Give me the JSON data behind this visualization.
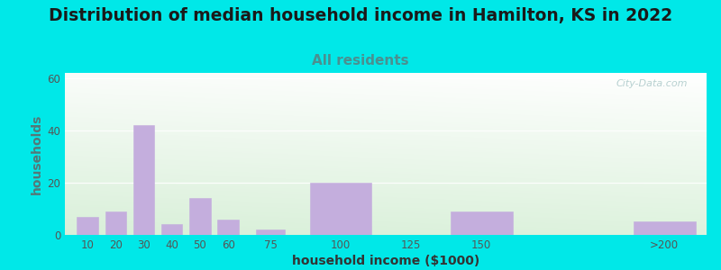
{
  "title": "Distribution of median household income in Hamilton, KS in 2022",
  "subtitle": "All residents",
  "xlabel": "household income ($1000)",
  "ylabel": "households",
  "bar_labels": [
    "10",
    "20",
    "30",
    "40",
    "50",
    "60",
    "75",
    "100",
    "125",
    "150",
    ">200"
  ],
  "bar_values": [
    7,
    9,
    42,
    4,
    14,
    6,
    2,
    20,
    0,
    9,
    5
  ],
  "bar_color": "#c4aedd",
  "bar_edgecolor": "#c4aedd",
  "ylim": [
    0,
    62
  ],
  "yticks": [
    0,
    20,
    40,
    60
  ],
  "background_outer": "#00e8e8",
  "title_fontsize": 13.5,
  "subtitle_fontsize": 11,
  "subtitle_color": "#4a9090",
  "ylabel_color": "#557777",
  "xlabel_color": "#333333",
  "axis_label_fontsize": 10,
  "tick_label_color": "#555555",
  "watermark_text": "City-Data.com",
  "watermark_color": "#b0cccc",
  "bar_positions": [
    10,
    20,
    30,
    40,
    50,
    60,
    75,
    100,
    125,
    150,
    215
  ],
  "bar_widths": [
    7.5,
    7.5,
    7.5,
    7.5,
    7.5,
    7.5,
    10,
    22,
    22,
    22,
    22
  ],
  "xlim": [
    2,
    230
  ]
}
